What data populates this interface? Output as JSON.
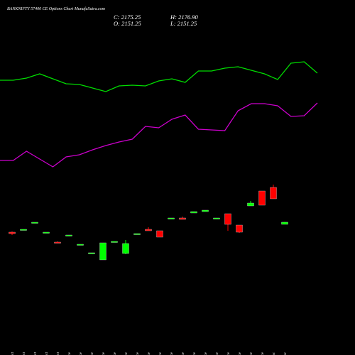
{
  "chart_data": {
    "type": "candlestick",
    "title": "BANKNIFTY 57400 CE Options Chart MunafaSutra.com",
    "annotations": [
      "C: 2175.25",
      "O: 2151.25",
      "H: 2176.90",
      "L: 2151.25"
    ],
    "categories": [
      "27 Oct",
      "28 Oct",
      "29 Oct",
      "30 Oct",
      "31 Oct",
      "03 Nov",
      "04 Nov",
      "06 Nov",
      "07 Nov",
      "10 Nov",
      "11 Nov",
      "12 Nov",
      "13 Nov",
      "14 Nov",
      "17 Nov",
      "18 Nov",
      "19 Nov",
      "20 Nov",
      "21 Nov",
      "24 Nov",
      "25 Nov",
      "26 Nov",
      "27 Nov",
      "01 Dec",
      "04 Dec"
    ],
    "open": [
      2063,
      2087,
      2167,
      2055,
      1951,
      2023,
      1919,
      1823,
      1751,
      1951,
      1823,
      2039,
      2095,
      2079,
      2215,
      2223,
      2279,
      2295,
      2215,
      2271,
      2143,
      2359,
      2527,
      2567,
      2151.25
    ],
    "high": [
      2071,
      2095,
      2175,
      2063,
      1959,
      2031,
      1927,
      1831,
      1943,
      1959,
      1975,
      2047,
      2119,
      2079,
      2223,
      2239,
      2295,
      2311,
      2223,
      2271,
      2143,
      2415,
      2527,
      2599,
      2176.9
    ],
    "low": [
      2031,
      2087,
      2167,
      2055,
      1943,
      2023,
      1919,
      1823,
      1751,
      1951,
      1815,
      2039,
      2079,
      2007,
      2215,
      2207,
      2279,
      2295,
      2215,
      2079,
      2055,
      2359,
      2367,
      2439,
      2151.25
    ],
    "close": [
      2047,
      2095,
      2175,
      2063,
      1943,
      2031,
      1927,
      1831,
      1943,
      1959,
      1935,
      2047,
      2079,
      2007,
      2223,
      2207,
      2295,
      2311,
      2223,
      2151,
      2063,
      2391,
      2367,
      2439,
      2175.25
    ],
    "up_color": "#00ff00",
    "down_color": "#ff0000",
    "series": [
      {
        "color": "#00dd00",
        "values": [
          3775,
          3775,
          3799,
          3847,
          3791,
          3735,
          3727,
          3687,
          3647,
          3711,
          3719,
          3711,
          3767,
          3791,
          3751,
          3879,
          3879,
          3911,
          3927,
          3887,
          3847,
          3783,
          3967,
          3983,
          3855
        ]
      },
      {
        "color": "#cc00cc",
        "values": [
          2871,
          2871,
          2975,
          2887,
          2799,
          2911,
          2935,
          2991,
          3039,
          3079,
          3111,
          3255,
          3239,
          3335,
          3383,
          3223,
          3215,
          3207,
          3431,
          3511,
          3511,
          3487,
          3367,
          3375,
          3519
        ]
      }
    ],
    "ylim": [
      679,
      4679
    ]
  }
}
